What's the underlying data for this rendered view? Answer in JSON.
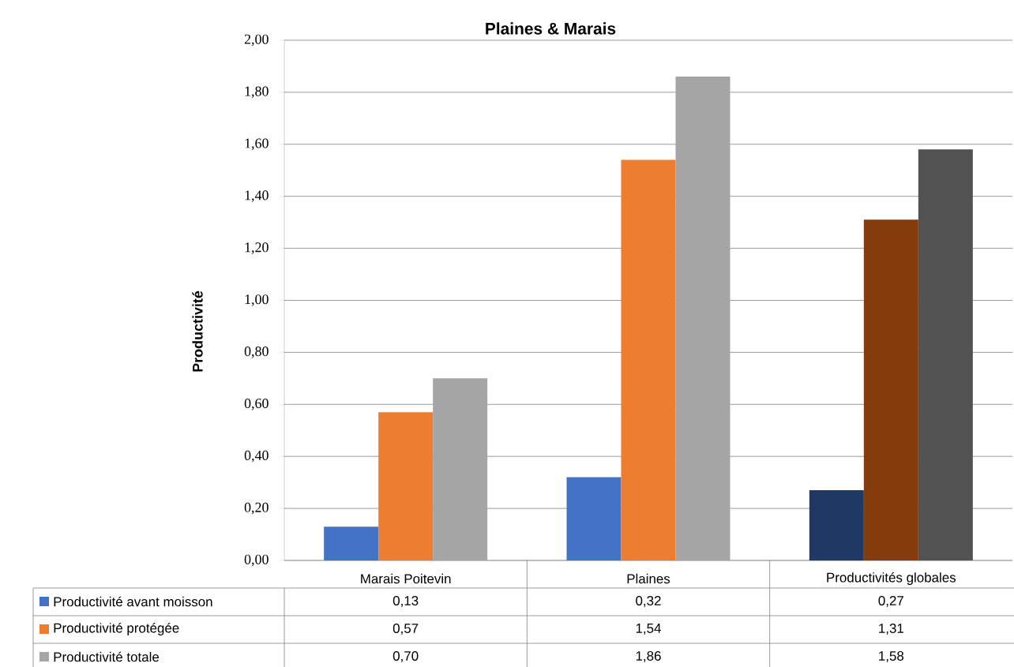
{
  "chart_data": {
    "type": "bar",
    "title": "Plaines & Marais",
    "ylabel": "Productivité",
    "categories": [
      "Marais Poitevin",
      "Plaines",
      "Productivités globales"
    ],
    "series": [
      {
        "name": "Productivité avant moisson",
        "colors": [
          "#4472c4",
          "#4472c4",
          "#203864"
        ],
        "values": [
          0.13,
          0.32,
          0.27
        ],
        "value_labels": [
          "0,13",
          "0,32",
          "0,27"
        ]
      },
      {
        "name": "Productivité protégée",
        "colors": [
          "#ed7d31",
          "#ed7d31",
          "#843c0c"
        ],
        "values": [
          0.57,
          1.54,
          1.31
        ],
        "value_labels": [
          "0,57",
          "1,54",
          "1,31"
        ]
      },
      {
        "name": "Productivité totale",
        "colors": [
          "#a5a5a5",
          "#a5a5a5",
          "#525252"
        ],
        "values": [
          0.7,
          1.86,
          1.58
        ],
        "value_labels": [
          "0,70",
          "1,86",
          "1,58"
        ]
      }
    ],
    "ylim": [
      0,
      2
    ],
    "yticks": [
      {
        "value": 0,
        "label": "0,00"
      },
      {
        "value": 0.2,
        "label": "0,20"
      },
      {
        "value": 0.4,
        "label": "0,40"
      },
      {
        "value": 0.6,
        "label": "0,60"
      },
      {
        "value": 0.8,
        "label": "0,80"
      },
      {
        "value": 1,
        "label": "1,00"
      },
      {
        "value": 1.2,
        "label": "1,20"
      },
      {
        "value": 1.4,
        "label": "1,40"
      },
      {
        "value": 1.6,
        "label": "1,60"
      },
      {
        "value": 1.8,
        "label": "1,80"
      },
      {
        "value": 2,
        "label": "2,00"
      }
    ],
    "grid": "y",
    "legend": "bottom"
  }
}
